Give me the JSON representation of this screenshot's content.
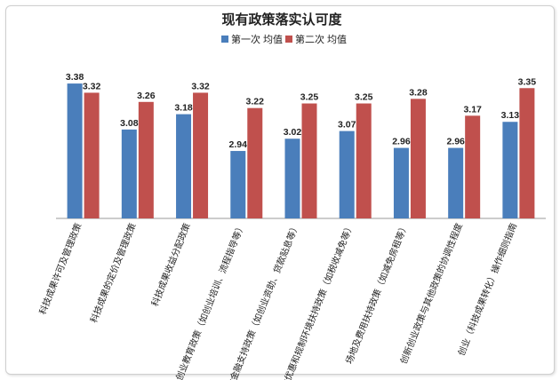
{
  "chart_data": {
    "type": "bar",
    "title": "现有政策落实认可度",
    "xlabel": "",
    "ylabel": "",
    "ylim": [
      2.5,
      3.45
    ],
    "grid": false,
    "legend_position": "top",
    "categories": [
      "科技成果许可及管理政策",
      "科技成果的定价及管理政策",
      "科技成果收益分配政策",
      "创业教育政策（如创业培训、流程指导等）",
      "财政金融支持政策（如创业资助、贷款贴息等）",
      "税收优惠和规制环境扶持政策（如税收减免等）",
      "场地及费用扶持政策（如减免房租等）",
      "创新创业政策与其他政策的协调性程度",
      "创业（科技成果转化）操作细则指南"
    ],
    "series": [
      {
        "name": "第一次 均值",
        "color": "#4a7ebb",
        "values": [
          3.38,
          3.08,
          3.18,
          2.94,
          3.02,
          3.07,
          2.96,
          2.96,
          3.13
        ]
      },
      {
        "name": "第二次 均值",
        "color": "#c0504d",
        "values": [
          3.32,
          3.26,
          3.32,
          3.22,
          3.25,
          3.25,
          3.28,
          3.17,
          3.35
        ]
      }
    ]
  }
}
